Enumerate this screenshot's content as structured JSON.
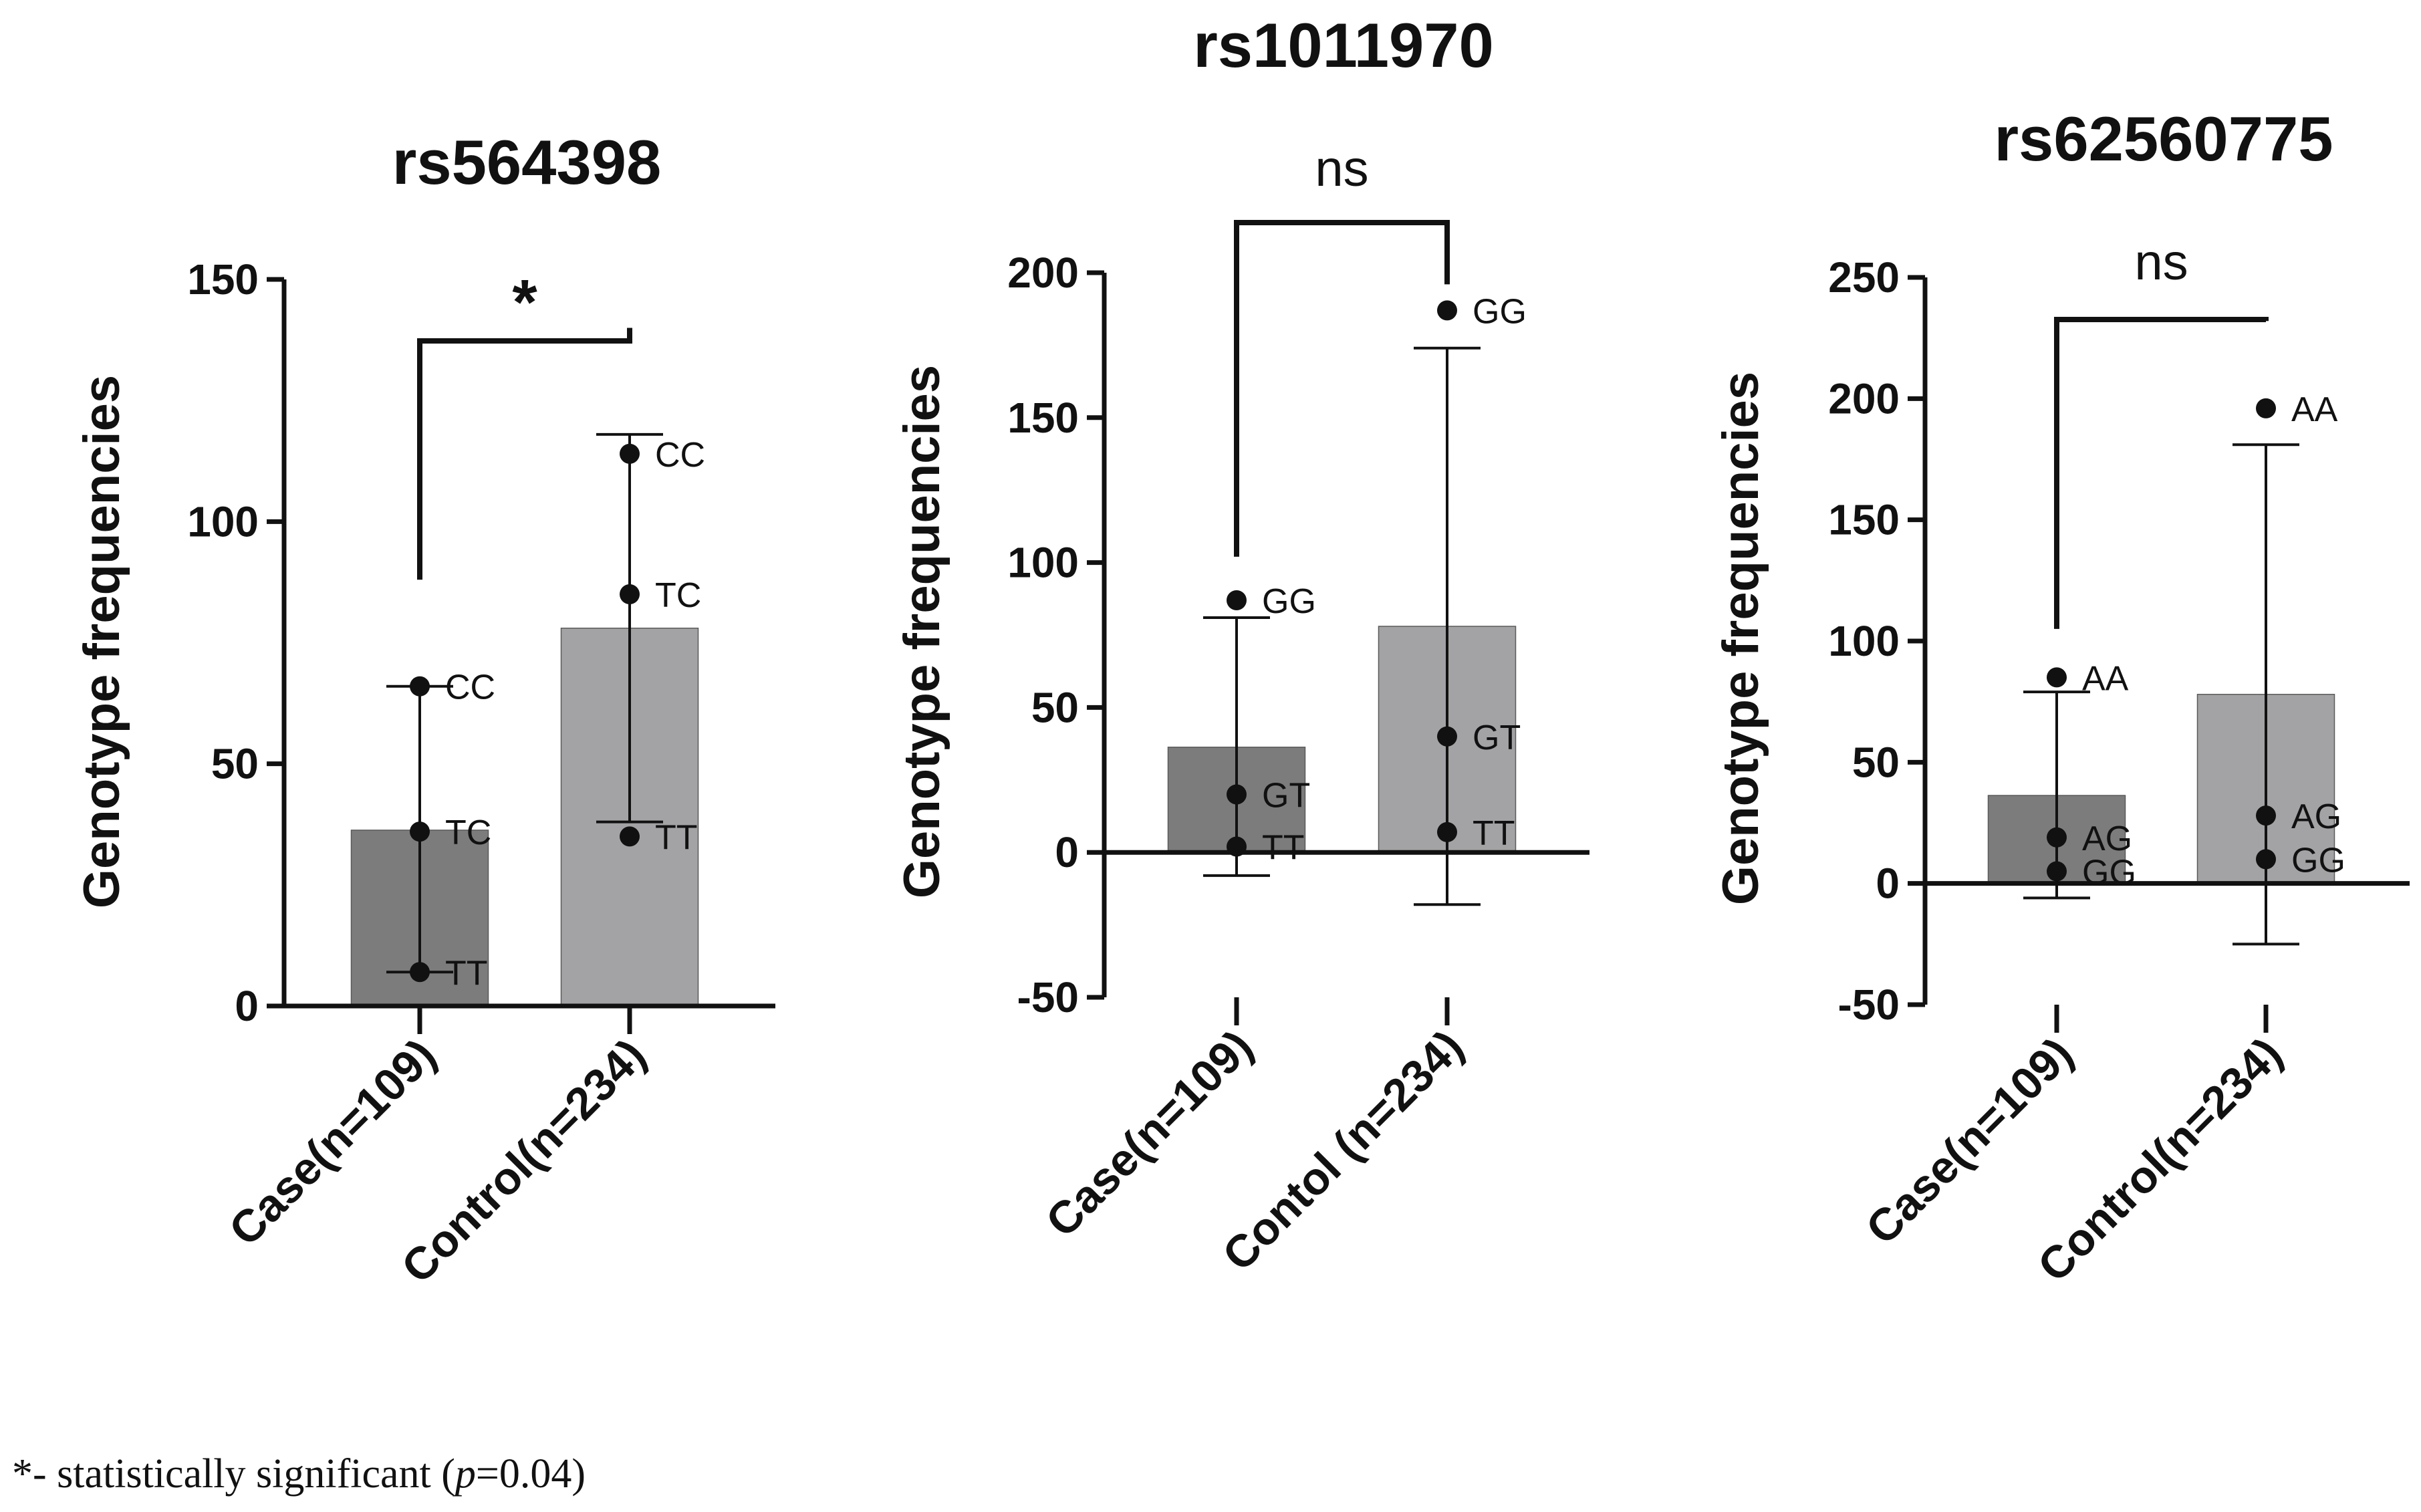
{
  "chart_data": [
    {
      "type": "bar",
      "title": "rs564398",
      "xlabel": "",
      "ylabel": "Genotype frequencies",
      "ylim": [
        0,
        150
      ],
      "yticks": [
        0,
        50,
        100,
        150
      ],
      "categories": [
        "Case(n=109)",
        "Control(n=234)"
      ],
      "values": [
        36.3,
        78
      ],
      "error_bars": [
        {
          "low": 7,
          "high": 66
        },
        {
          "low": 38,
          "high": 118
        }
      ],
      "points": [
        [
          {
            "label": "CC",
            "value": 66
          },
          {
            "label": "TC",
            "value": 36
          },
          {
            "label": "TT",
            "value": 7
          }
        ],
        [
          {
            "label": "CC",
            "value": 114
          },
          {
            "label": "TC",
            "value": 85
          },
          {
            "label": "TT",
            "value": 35
          }
        ]
      ],
      "significance": "*"
    },
    {
      "type": "bar",
      "title": "rs1011970",
      "xlabel": "",
      "ylabel": "Genotype frequencies",
      "ylim": [
        -50,
        200
      ],
      "yticks": [
        -50,
        0,
        50,
        100,
        150,
        200
      ],
      "categories": [
        "Case(n=109)",
        "Contol (n=234)"
      ],
      "values": [
        36.3,
        78
      ],
      "error_bars": [
        {
          "low": -8,
          "high": 81
        },
        {
          "low": -18,
          "high": 174
        }
      ],
      "points": [
        [
          {
            "label": "GG",
            "value": 87
          },
          {
            "label": "GT",
            "value": 20
          },
          {
            "label": "TT",
            "value": 2
          }
        ],
        [
          {
            "label": "GG",
            "value": 187
          },
          {
            "label": "GT",
            "value": 40
          },
          {
            "label": "TT",
            "value": 7
          }
        ]
      ],
      "significance": "ns"
    },
    {
      "type": "bar",
      "title": "rs62560775",
      "xlabel": "",
      "ylabel": "Genotype frequencies",
      "ylim": [
        -50,
        250
      ],
      "yticks": [
        -50,
        0,
        50,
        100,
        150,
        200,
        250
      ],
      "categories": [
        "Case(n=109)",
        "Control(n=234)"
      ],
      "values": [
        36.3,
        78
      ],
      "error_bars": [
        {
          "low": -6,
          "high": 79
        },
        {
          "low": -25,
          "high": 181
        }
      ],
      "points": [
        [
          {
            "label": "AA",
            "value": 85
          },
          {
            "label": "AG",
            "value": 19
          },
          {
            "label": "GG",
            "value": 5
          }
        ],
        [
          {
            "label": "AA",
            "value": 196
          },
          {
            "label": "AG",
            "value": 28
          },
          {
            "label": "GG",
            "value": 10
          }
        ]
      ],
      "significance": "ns"
    }
  ],
  "footnote": {
    "prefix": "*- statistically significant (",
    "p_symbol": "p",
    "suffix": "=0.04)"
  },
  "colors": {
    "case_bar": "#7c7c7c",
    "control_bar": "#a3a3a6",
    "ink": "#111111"
  }
}
